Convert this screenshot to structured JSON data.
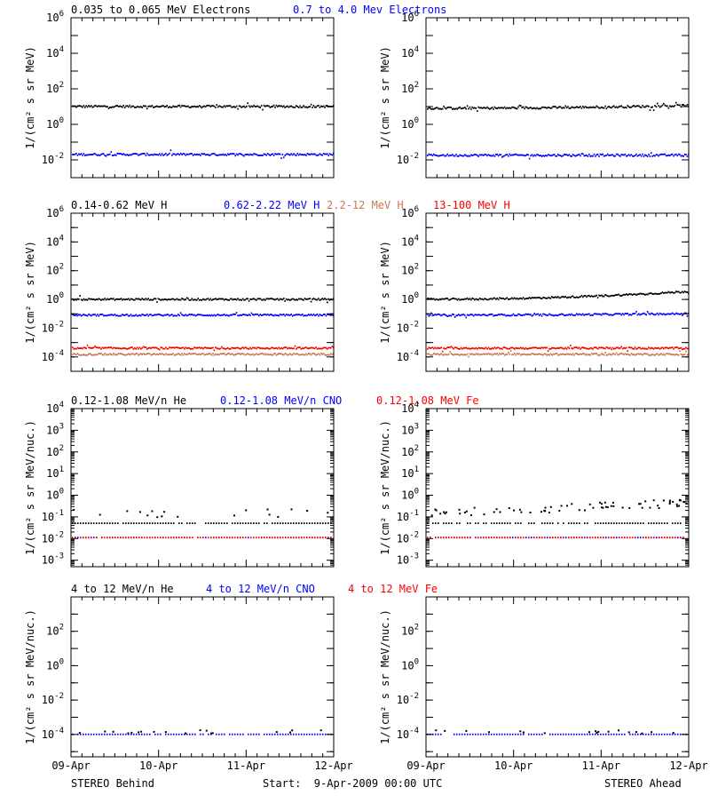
{
  "colors": {
    "black": "#000000",
    "blue": "#0000ff",
    "brown": "#c87850",
    "red": "#ff0000"
  },
  "footer": {
    "left": "STEREO Behind",
    "center": "Start:  9-Apr-2009 00:00 UTC",
    "right": "STEREO Ahead"
  },
  "x_tick_labels": [
    "09-Apr",
    "10-Apr",
    "11-Apr",
    "12-Apr"
  ],
  "chart_data": [
    {
      "type": "scatter",
      "row": 1,
      "legend": [
        {
          "label": "0.035 to 0.065 MeV Electrons",
          "color": "#000000"
        },
        {
          "label": "0.7 to 4.0 Mev Electrons",
          "color": "#0000ff"
        }
      ],
      "ylabel": "1/(cm² s sr MeV)",
      "yscale": "log",
      "ylim": [
        0.001,
        1000000
      ],
      "ytick_labels": [
        {
          "base": "10",
          "exp": "6",
          "value": 1000000
        },
        {
          "base": "10",
          "exp": "4",
          "value": 10000
        },
        {
          "base": "10",
          "exp": "2",
          "value": 100
        },
        {
          "base": "10",
          "exp": "0",
          "value": 1
        },
        {
          "base": "10",
          "exp": "-2",
          "value": 0.01
        }
      ],
      "xlim": [
        "09-Apr",
        "12-Apr"
      ],
      "panels": [
        {
          "spacecraft": "STEREO Behind",
          "series": [
            {
              "color": "#000000",
              "value": 10,
              "trend": 0
            },
            {
              "color": "#0000ff",
              "value": 0.02,
              "trend": 0
            }
          ]
        },
        {
          "spacecraft": "STEREO Ahead",
          "series": [
            {
              "color": "#000000",
              "value": 8,
              "trend": 0.15
            },
            {
              "color": "#0000ff",
              "value": 0.018,
              "trend": 0
            }
          ]
        }
      ]
    },
    {
      "type": "scatter",
      "row": 2,
      "legend": [
        {
          "label": "0.14-0.62 MeV H",
          "color": "#000000"
        },
        {
          "label": "0.62-2.22 MeV H",
          "color": "#0000ff"
        },
        {
          "label": "2.2-12 MeV H",
          "color": "#c87850"
        },
        {
          "label": "13-100 MeV H",
          "color": "#ff0000"
        }
      ],
      "ylabel": "1/(cm² s sr MeV)",
      "yscale": "log",
      "ylim": [
        1e-05,
        1000000
      ],
      "ytick_labels": [
        {
          "base": "10",
          "exp": "6",
          "value": 1000000
        },
        {
          "base": "10",
          "exp": "4",
          "value": 10000
        },
        {
          "base": "10",
          "exp": "2",
          "value": 100
        },
        {
          "base": "10",
          "exp": "0",
          "value": 1
        },
        {
          "base": "10",
          "exp": "-2",
          "value": 0.01
        },
        {
          "base": "10",
          "exp": "-4",
          "value": 0.0001
        }
      ],
      "xlim": [
        "09-Apr",
        "12-Apr"
      ],
      "panels": [
        {
          "spacecraft": "STEREO Behind",
          "series": [
            {
              "color": "#000000",
              "value": 1.0,
              "trend": 0
            },
            {
              "color": "#0000ff",
              "value": 0.08,
              "trend": 0
            },
            {
              "color": "#ff0000",
              "value": 0.0004,
              "trend": 0
            },
            {
              "color": "#c87850",
              "value": 0.00015,
              "trend": 0
            }
          ]
        },
        {
          "spacecraft": "STEREO Ahead",
          "series": [
            {
              "color": "#000000",
              "value": 1.0,
              "trend": 0.55
            },
            {
              "color": "#0000ff",
              "value": 0.08,
              "trend": 0.1
            },
            {
              "color": "#ff0000",
              "value": 0.0004,
              "trend": 0
            },
            {
              "color": "#c87850",
              "value": 0.00015,
              "trend": 0
            }
          ]
        }
      ]
    },
    {
      "type": "scatter",
      "row": 3,
      "legend": [
        {
          "label": "0.12-1.08 MeV/n He",
          "color": "#000000"
        },
        {
          "label": "0.12-1.08 MeV/n CNO",
          "color": "#0000ff"
        },
        {
          "label": "0.12-1.08 MeV Fe",
          "color": "#ff0000"
        }
      ],
      "ylabel": "1/(cm² s sr MeV/nuc.)",
      "yscale": "log",
      "ylim": [
        0.0005,
        10000
      ],
      "ytick_labels": [
        {
          "base": "10",
          "exp": "4",
          "value": 10000
        },
        {
          "base": "10",
          "exp": "3",
          "value": 1000
        },
        {
          "base": "10",
          "exp": "2",
          "value": 100
        },
        {
          "base": "10",
          "exp": "1",
          "value": 10
        },
        {
          "base": "10",
          "exp": "0",
          "value": 1
        },
        {
          "base": "10",
          "exp": "-1",
          "value": 0.1
        },
        {
          "base": "10",
          "exp": "-2",
          "value": 0.01
        },
        {
          "base": "10",
          "exp": "-3",
          "value": 0.001
        }
      ],
      "xlim": [
        "09-Apr",
        "12-Apr"
      ],
      "panels": [
        {
          "spacecraft": "STEREO Behind",
          "series": [
            {
              "color": "#000000",
              "value": 0.05,
              "trend": 0
            },
            {
              "color": "#0000ff",
              "value": 0.011,
              "trend": 0
            },
            {
              "color": "#ff0000",
              "value": 0.011,
              "trend": 0
            }
          ]
        },
        {
          "spacecraft": "STEREO Ahead",
          "series": [
            {
              "color": "#000000",
              "value": 0.05,
              "trend": 0
            },
            {
              "color": "#0000ff",
              "value": 0.011,
              "trend": 0
            },
            {
              "color": "#ff0000",
              "value": 0.011,
              "trend": 0
            }
          ]
        }
      ]
    },
    {
      "type": "scatter",
      "row": 4,
      "legend": [
        {
          "label": "4 to 12 MeV/n He",
          "color": "#000000"
        },
        {
          "label": "4 to 12 MeV/n CNO",
          "color": "#0000ff"
        },
        {
          "label": "4 to 12 MeV Fe",
          "color": "#ff0000"
        }
      ],
      "ylabel": "1/(cm² s sr MeV/nuc.)",
      "yscale": "log",
      "ylim": [
        5e-06,
        10000
      ],
      "ytick_labels": [
        {
          "base": "10",
          "exp": "2",
          "value": 100
        },
        {
          "base": "10",
          "exp": "0",
          "value": 1
        },
        {
          "base": "10",
          "exp": "-2",
          "value": 0.01
        },
        {
          "base": "10",
          "exp": "-4",
          "value": 0.0001
        }
      ],
      "xlim": [
        "09-Apr",
        "12-Apr"
      ],
      "panels": [
        {
          "spacecraft": "STEREO Behind",
          "series": [
            {
              "color": "#0000ff",
              "value": 0.0001,
              "trend": 0
            }
          ]
        },
        {
          "spacecraft": "STEREO Ahead",
          "series": [
            {
              "color": "#0000ff",
              "value": 0.0001,
              "trend": 0
            }
          ]
        }
      ]
    }
  ]
}
